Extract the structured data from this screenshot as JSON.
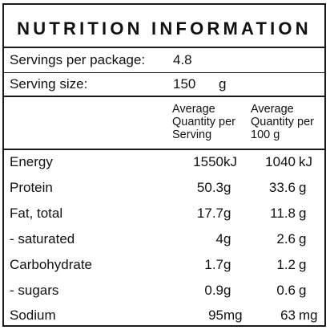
{
  "title": "NUTRITION INFORMATION",
  "servings_per_package": {
    "label": "Servings per package:",
    "value": "4.8"
  },
  "serving_size": {
    "label": "Serving size:",
    "value": "150",
    "unit": "g"
  },
  "columns": {
    "per_serving": [
      "Average",
      "Quantity per",
      "Serving"
    ],
    "per_100g": [
      "Average",
      "Quantity per",
      "100 g"
    ]
  },
  "rows": [
    {
      "name": "Energy",
      "serving": "1550",
      "serving_unit": "kJ",
      "per100": "1040",
      "per100_unit": "kJ"
    },
    {
      "name": "Protein",
      "serving": "50.3",
      "serving_unit": "g",
      "per100": "33.6",
      "per100_unit": "g"
    },
    {
      "name": "Fat, total",
      "serving": "17.7",
      "serving_unit": "g",
      "per100": "11.8",
      "per100_unit": "g"
    },
    {
      "name": "- saturated",
      "serving": "4",
      "serving_unit": "g",
      "per100": "2.6",
      "per100_unit": "g"
    },
    {
      "name": "Carbohydrate",
      "serving": "1.7",
      "serving_unit": "g",
      "per100": "1.2",
      "per100_unit": "g"
    },
    {
      "name": "- sugars",
      "serving": "0.9",
      "serving_unit": "g",
      "per100": "0.6",
      "per100_unit": "g"
    },
    {
      "name": "Sodium",
      "serving": "95",
      "serving_unit": "mg",
      "per100": "63",
      "per100_unit": "mg"
    }
  ]
}
